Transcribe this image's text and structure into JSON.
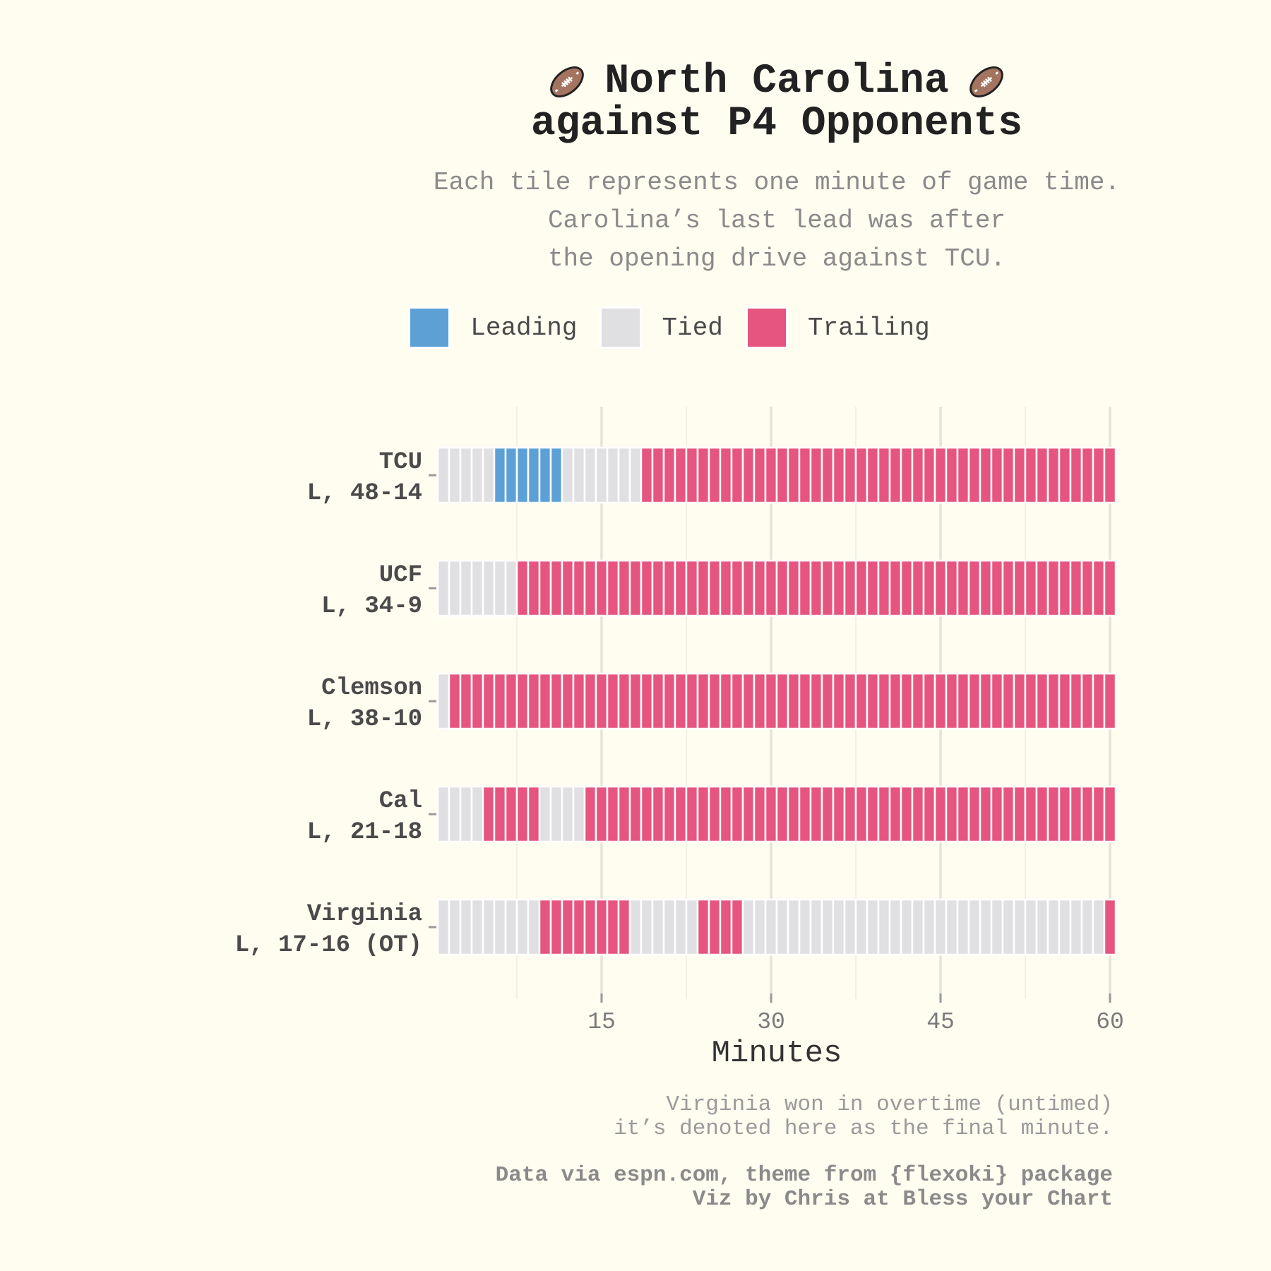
{
  "title": {
    "line1": "North Carolina",
    "line2": "against P4 Opponents",
    "icon": "football-emoji"
  },
  "subtitle": [
    "Each tile represents one minute of game time.",
    "Carolina’s last lead was after",
    "the opening drive against TCU."
  ],
  "legend": [
    {
      "label": "Leading",
      "color": "#5CA0D6"
    },
    {
      "label": "Tied",
      "color": "#E0E0E2"
    },
    {
      "label": "Trailing",
      "color": "#E5557F"
    }
  ],
  "chart_data": {
    "type": "heatmap",
    "title": "North Carolina against P4 Opponents",
    "xlabel": "Minutes",
    "ylabel": "",
    "xlim": [
      0,
      60
    ],
    "xticks": [
      15,
      30,
      45,
      60
    ],
    "grid": true,
    "legend_position": "top",
    "colors": {
      "Leading": "#5CA0D6",
      "Tied": "#E0E0E2",
      "Trailing": "#E5557F"
    },
    "games": [
      {
        "opponent": "TCU",
        "result": "L, 48-14",
        "segments": [
          [
            "Tied",
            5
          ],
          [
            "Leading",
            6
          ],
          [
            "Tied",
            7
          ],
          [
            "Trailing",
            42
          ]
        ]
      },
      {
        "opponent": "UCF",
        "result": "L, 34-9",
        "segments": [
          [
            "Tied",
            7
          ],
          [
            "Trailing",
            53
          ]
        ]
      },
      {
        "opponent": "Clemson",
        "result": "L, 38-10",
        "segments": [
          [
            "Tied",
            1
          ],
          [
            "Trailing",
            59
          ]
        ]
      },
      {
        "opponent": "Cal",
        "result": "L, 21-18",
        "segments": [
          [
            "Tied",
            4
          ],
          [
            "Trailing",
            5
          ],
          [
            "Tied",
            4
          ],
          [
            "Trailing",
            47
          ]
        ]
      },
      {
        "opponent": "Virginia",
        "result": "L, 17-16 (OT)",
        "segments": [
          [
            "Tied",
            9
          ],
          [
            "Trailing",
            8
          ],
          [
            "Tied",
            6
          ],
          [
            "Trailing",
            4
          ],
          [
            "Tied",
            32
          ],
          [
            "Trailing",
            1
          ]
        ]
      }
    ]
  },
  "note": [
    "Virginia won in overtime (untimed)",
    "it’s denoted here as the final minute."
  ],
  "caption": [
    "Data via espn.com, theme from {flexoki} package",
    "Viz by Chris at Bless your Chart"
  ]
}
